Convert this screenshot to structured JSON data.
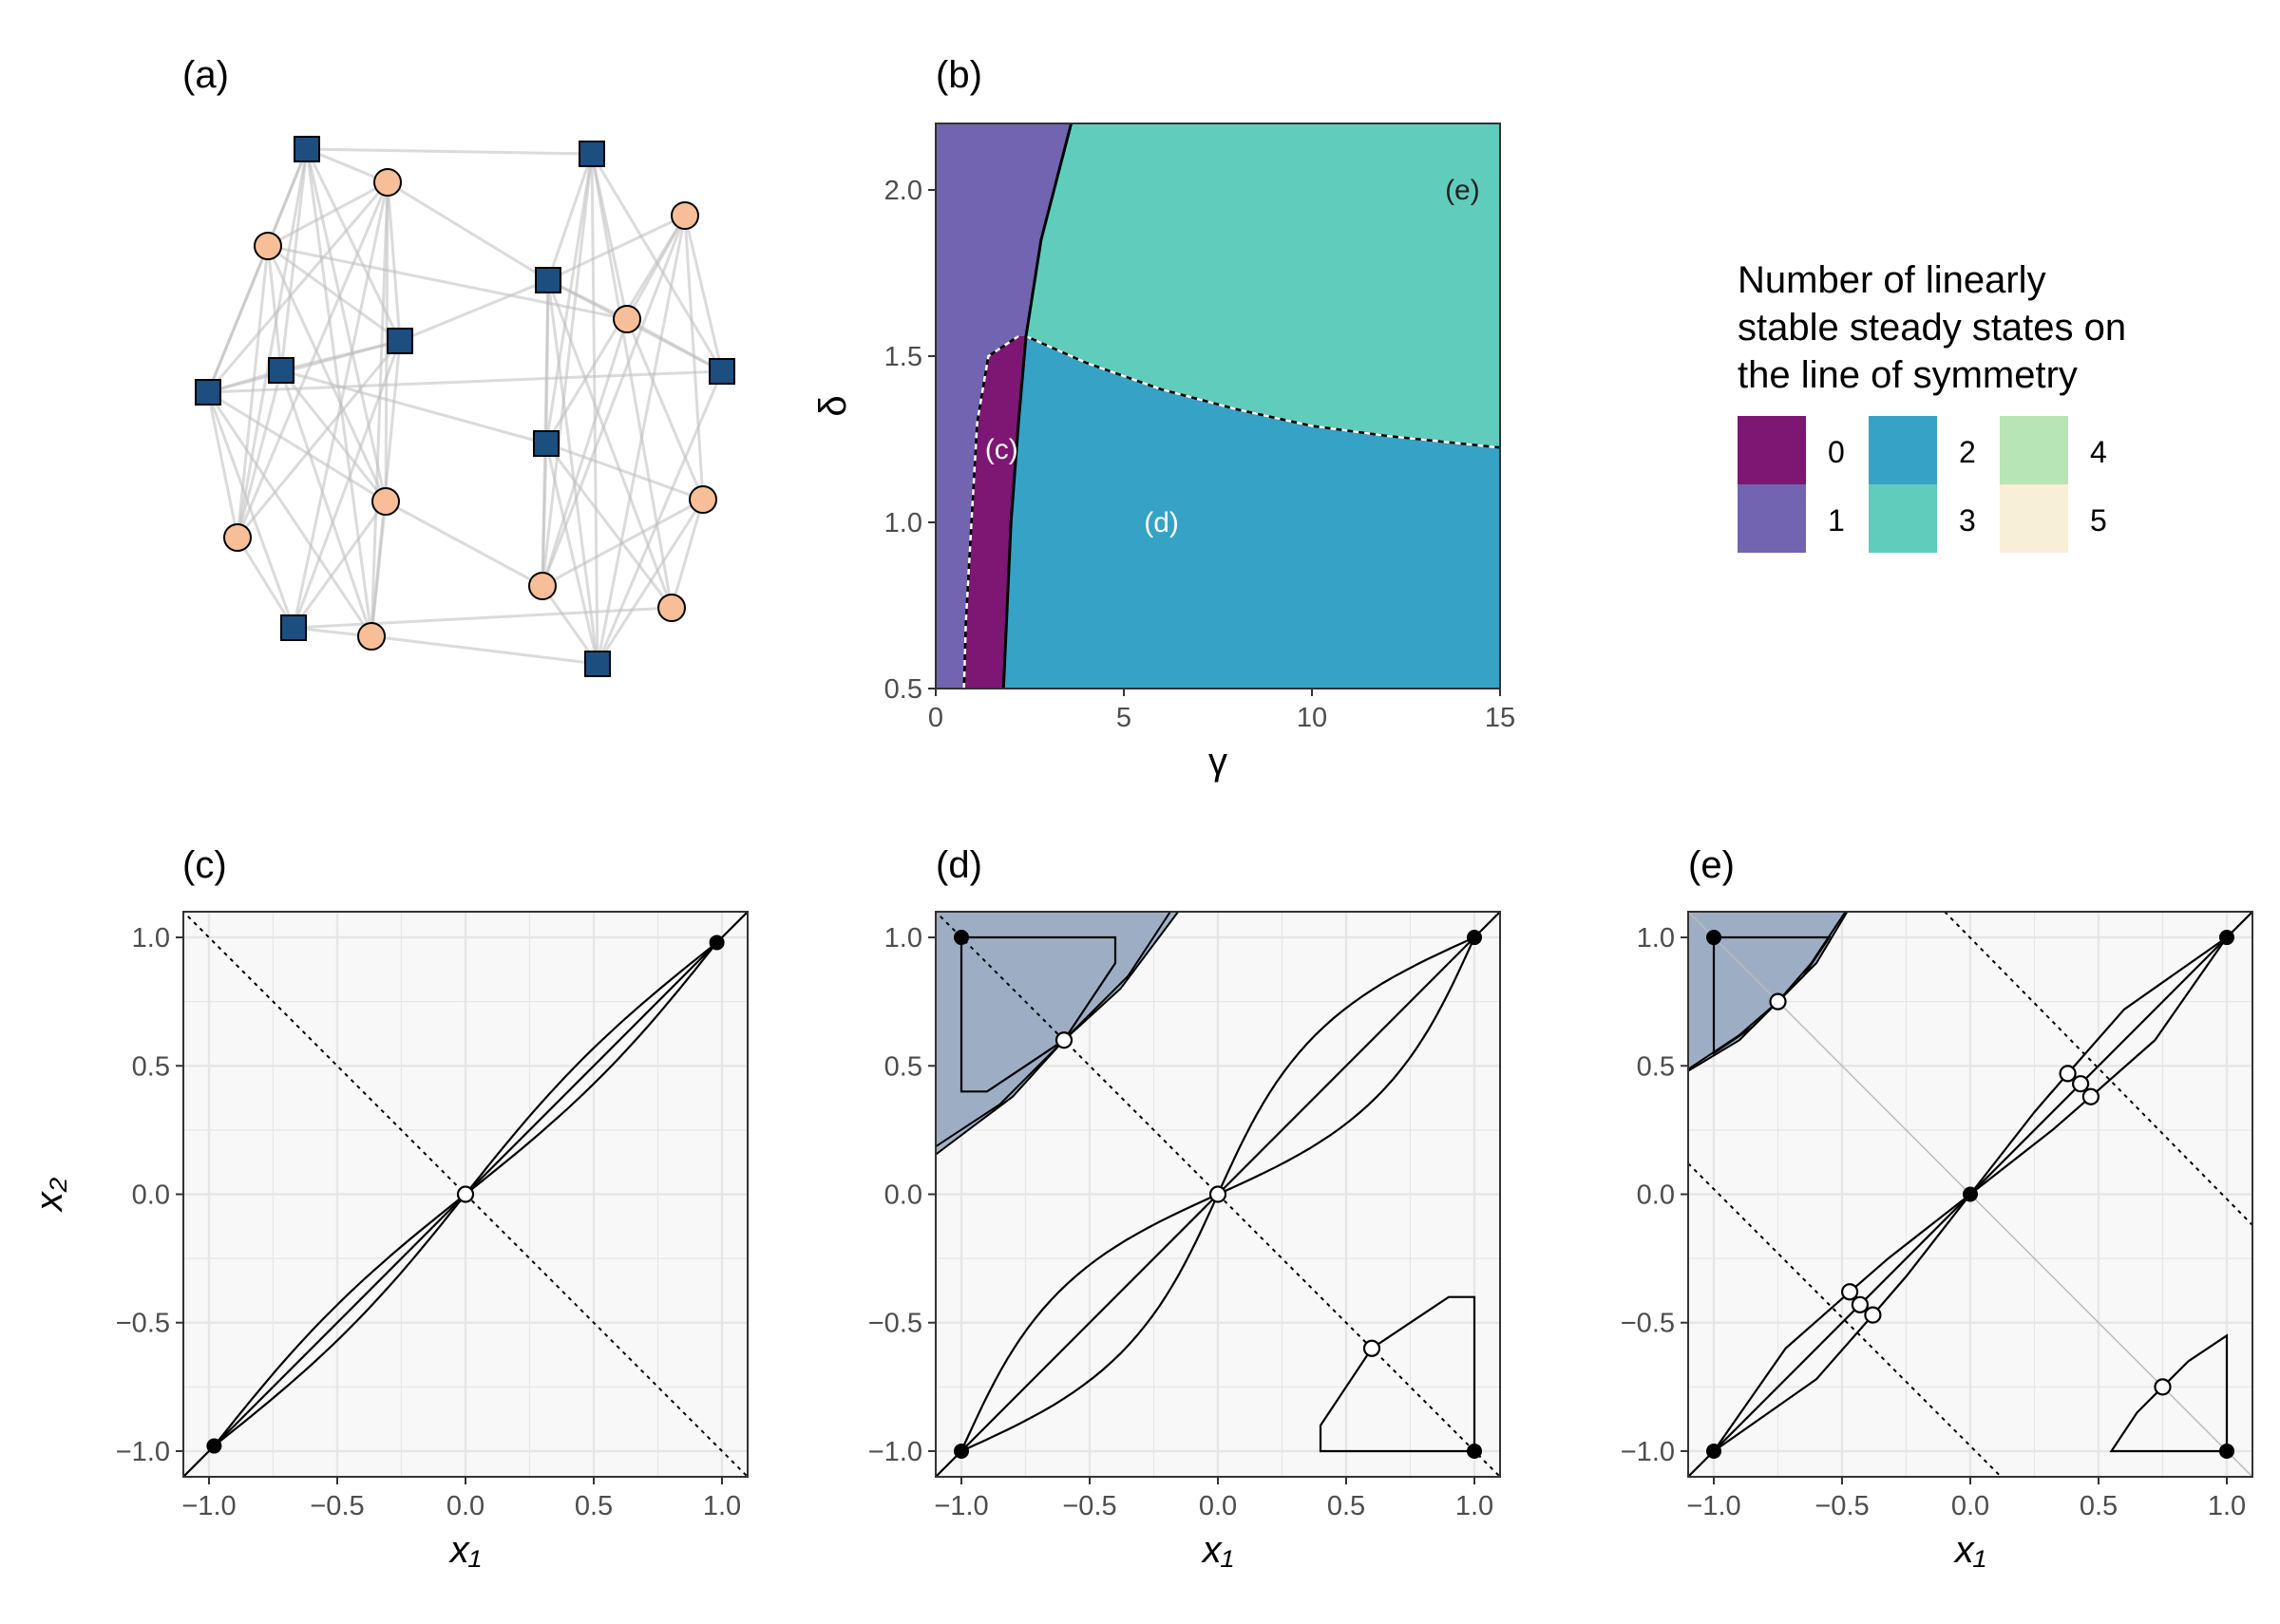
{
  "panel_labels": {
    "a": "(a)",
    "b": "(b)",
    "c": "(c)",
    "d": "(d)",
    "e": "(e)"
  },
  "colors": {
    "c0": "#7E1673",
    "c1": "#7264B0",
    "c2": "#35A2C6",
    "c3": "#60CCBC",
    "c4": "#B7E5B6",
    "c5": "#F7F0D7",
    "square": "#1C4E80",
    "circle": "#F7BE98",
    "edge": "#C9C9C9",
    "shade": "#9DAEC4"
  },
  "legend": {
    "title_lines": [
      "Number of linearly",
      "stable steady states on",
      "the line of symmetry"
    ],
    "items": [
      "0",
      "1",
      "2",
      "3",
      "4",
      "5"
    ]
  },
  "network": {
    "left_squares": [
      [
        0,
        0
      ],
      [
        1,
        0
      ],
      [
        2,
        0
      ],
      [
        3,
        0
      ],
      [
        4,
        0
      ]
    ],
    "note": "left and right clusters of 10 nodes each"
  },
  "chart_data": [
    {
      "panel": "b",
      "type": "heatmap",
      "xlabel": "γ",
      "ylabel": "δ",
      "xlim": [
        0,
        15
      ],
      "ylim": [
        0.5,
        2.2
      ],
      "xticks": [
        "0",
        "5",
        "10",
        "15"
      ],
      "yticks": [
        "0.5",
        "1.0",
        "1.5",
        "2.0"
      ],
      "xtick_values": [
        0,
        5,
        10,
        15
      ],
      "ytick_values": [
        0.5,
        1.0,
        1.5,
        2.0
      ],
      "regions": [
        {
          "count": 1,
          "label": ""
        },
        {
          "count": 0,
          "label": "(c)",
          "at": [
            1.75,
            1.22
          ]
        },
        {
          "count": 2,
          "label": "(d)",
          "at": [
            6.0,
            1.0
          ]
        },
        {
          "count": 3,
          "label": "(e)",
          "at": [
            14.0,
            2.0
          ]
        }
      ],
      "boundaries": {
        "b01_left": [
          [
            0.75,
            0.5
          ],
          [
            0.8,
            0.7
          ],
          [
            0.95,
            1.0
          ],
          [
            1.1,
            1.3
          ],
          [
            1.4,
            1.5
          ],
          [
            2.2,
            1.56
          ]
        ],
        "b02_right": [
          [
            1.8,
            0.5
          ],
          [
            2.0,
            1.0
          ],
          [
            2.2,
            1.3
          ],
          [
            2.4,
            1.56
          ],
          [
            2.8,
            1.85
          ],
          [
            3.6,
            2.2
          ]
        ],
        "b23": [
          [
            2.4,
            1.56
          ],
          [
            4,
            1.48
          ],
          [
            6,
            1.4
          ],
          [
            8,
            1.34
          ],
          [
            10,
            1.29
          ],
          [
            12,
            1.26
          ],
          [
            15,
            1.225
          ]
        ]
      }
    },
    {
      "panel": "c",
      "type": "line",
      "xlabel": "x₁",
      "ylabel": "x₂",
      "xlim": [
        -1.1,
        1.1
      ],
      "ylim": [
        -1.1,
        1.1
      ],
      "xticks": [
        "−1.0",
        "−0.5",
        "0.0",
        "0.5",
        "1.0"
      ],
      "yticks": [
        "−1.0",
        "−0.5",
        "0.0",
        "0.5",
        "1.0"
      ],
      "stable_points": [
        [
          -0.98,
          -0.98
        ],
        [
          0.98,
          0.98
        ]
      ],
      "unstable_points": [
        [
          0,
          0
        ]
      ]
    },
    {
      "panel": "d",
      "type": "line",
      "xlabel": "x₁",
      "ylabel": "",
      "xlim": [
        -1.1,
        1.1
      ],
      "ylim": [
        -1.1,
        1.1
      ],
      "xticks": [
        "−1.0",
        "−0.5",
        "0.0",
        "0.5",
        "1.0"
      ],
      "yticks": [
        "−1.0",
        "−0.5",
        "0.0",
        "0.5",
        "1.0"
      ],
      "stable_points": [
        [
          -1,
          1
        ],
        [
          1,
          1
        ],
        [
          -1,
          -1
        ],
        [
          1,
          -1
        ]
      ],
      "unstable_points": [
        [
          -0.6,
          0.6
        ],
        [
          0,
          0
        ],
        [
          0.6,
          -0.6
        ]
      ]
    },
    {
      "panel": "e",
      "type": "line",
      "xlabel": "x₁",
      "ylabel": "",
      "xlim": [
        -1.1,
        1.1
      ],
      "ylim": [
        -1.1,
        1.1
      ],
      "xticks": [
        "−1.0",
        "−0.5",
        "0.0",
        "0.5",
        "1.0"
      ],
      "yticks": [
        "−1.0",
        "−0.5",
        "0.0",
        "0.5",
        "1.0"
      ],
      "stable_points": [
        [
          -1,
          1
        ],
        [
          1,
          1
        ],
        [
          0,
          0
        ],
        [
          -1,
          -1
        ],
        [
          1,
          -1
        ]
      ],
      "unstable_points": [
        [
          -0.75,
          0.75
        ],
        [
          0.38,
          0.47
        ],
        [
          0.43,
          0.43
        ],
        [
          0.47,
          0.38
        ],
        [
          -0.47,
          -0.38
        ],
        [
          -0.43,
          -0.43
        ],
        [
          -0.38,
          -0.47
        ],
        [
          0.75,
          -0.75
        ]
      ]
    }
  ]
}
